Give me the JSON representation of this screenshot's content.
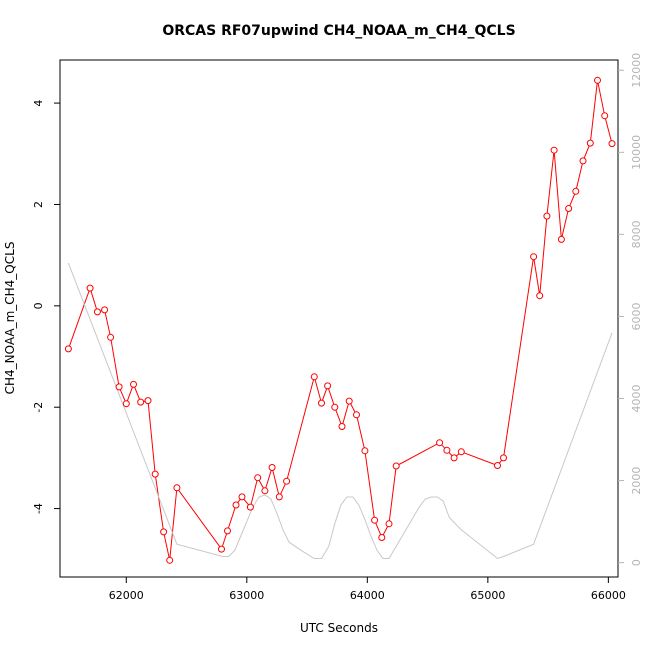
{
  "chart_data": {
    "type": "line",
    "title": "ORCAS RF07upwind CH4_NOAA_m_CH4_QCLS",
    "xlabel": "UTC Seconds",
    "ylabel": "CH4_NOAA_m_CH4_QCLS",
    "xlim": [
      61450,
      66080
    ],
    "ylim": [
      -5.35,
      4.85
    ],
    "y2lim": [
      -350,
      12250
    ],
    "x_ticks": [
      62000,
      63000,
      64000,
      65000,
      66000
    ],
    "y_ticks": [
      -4,
      -2,
      0,
      2,
      4
    ],
    "y2_ticks": [
      0,
      2000,
      4000,
      6000,
      8000,
      10000,
      12000
    ],
    "grid": false,
    "series": [
      {
        "color": "#ff0000",
        "marker": "open-circle",
        "axis": "left",
        "x": [
          61520,
          61700,
          61760,
          61820,
          61870,
          61940,
          62000,
          62060,
          62120,
          62180,
          62240,
          62310,
          62360,
          62420,
          62790,
          62840,
          62910,
          62960,
          63030,
          63090,
          63150,
          63210,
          63270,
          63330,
          63560,
          63620,
          63670,
          63730,
          63790,
          63850,
          63910,
          63980,
          64060,
          64120,
          64180,
          64240,
          64600,
          64660,
          64720,
          64780,
          65080,
          65130,
          65380,
          65430,
          65490,
          65550,
          65610,
          65670,
          65730,
          65790,
          65850,
          65910,
          65970,
          66030
        ],
        "y": [
          -0.85,
          0.35,
          -0.12,
          -0.08,
          -0.62,
          -1.6,
          -1.93,
          -1.55,
          -1.9,
          -1.87,
          -3.32,
          -4.46,
          -5.02,
          -3.59,
          -4.8,
          -4.44,
          -3.93,
          -3.77,
          -3.97,
          -3.39,
          -3.65,
          -3.19,
          -3.77,
          -3.46,
          -1.4,
          -1.92,
          -1.58,
          -2.0,
          -2.38,
          -1.88,
          -2.15,
          -2.86,
          -4.23,
          -4.57,
          -4.3,
          -3.16,
          -2.7,
          -2.85,
          -3.0,
          -2.88,
          -3.15,
          -3.0,
          0.97,
          0.2,
          1.77,
          3.07,
          1.31,
          1.92,
          2.26,
          2.86,
          3.21,
          4.45,
          3.75,
          3.2
        ]
      },
      {
        "color": "#c8c8c8",
        "marker": "none",
        "axis": "right",
        "x": [
          61520,
          62420,
          62800,
          62850,
          62900,
          62950,
          63000,
          63050,
          63100,
          63150,
          63200,
          63250,
          63300,
          63350,
          63450,
          63560,
          63620,
          63680,
          63730,
          63780,
          63830,
          63880,
          63930,
          63980,
          64030,
          64080,
          64130,
          64180,
          64230,
          64280,
          64330,
          64380,
          64430,
          64480,
          64530,
          64580,
          64630,
          64680,
          64730,
          64780,
          65080,
          65130,
          65380,
          66030
        ],
        "y": [
          7300,
          450,
          150,
          150,
          300,
          650,
          1000,
          1350,
          1600,
          1650,
          1550,
          1200,
          800,
          500,
          300,
          100,
          100,
          400,
          950,
          1400,
          1600,
          1600,
          1400,
          1050,
          650,
          300,
          100,
          100,
          350,
          600,
          850,
          1100,
          1350,
          1550,
          1600,
          1600,
          1500,
          1100,
          950,
          800,
          100,
          150,
          450,
          5600
        ]
      }
    ]
  }
}
